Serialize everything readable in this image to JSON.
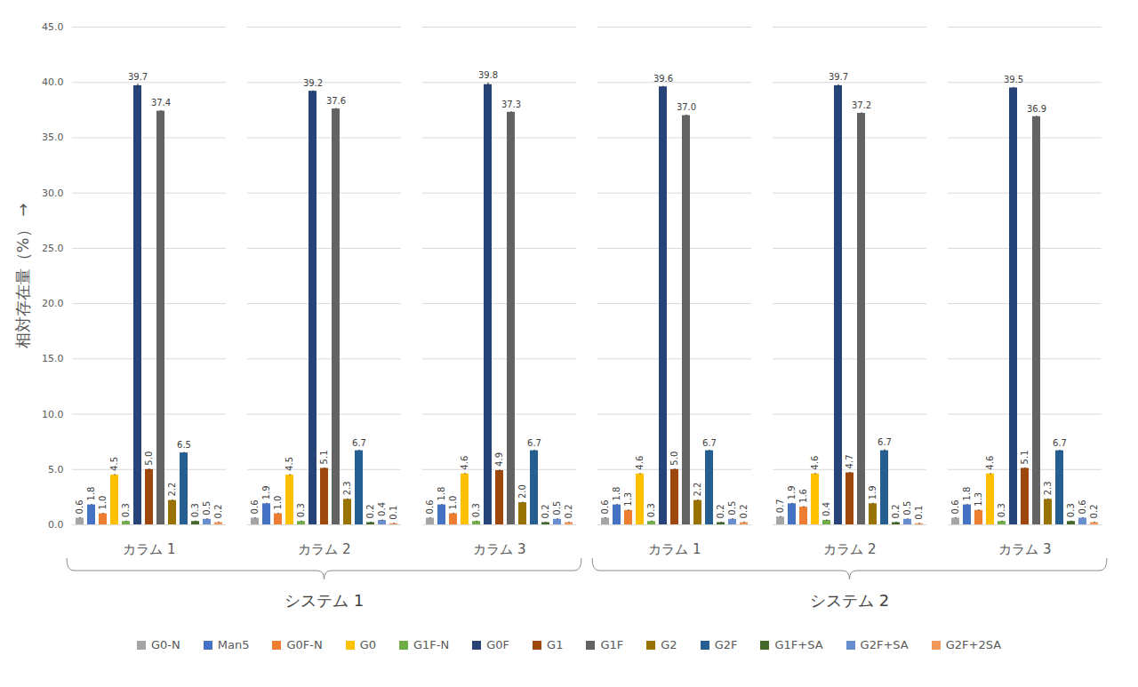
{
  "chart_data": {
    "type": "bar",
    "y_label": "相対存在量（%）",
    "categories": [
      "カラム 1",
      "カラム 2",
      "カラム 3",
      "カラム 1",
      "カラム 2",
      "カラム 3"
    ],
    "category_groups": [
      {
        "name": "システム 1",
        "size": 3
      },
      {
        "name": "システム 2",
        "size": 3
      }
    ],
    "ylim": [
      0,
      45
    ],
    "yticks": [
      {
        "value": 0,
        "label": "0.0"
      },
      {
        "value": 5,
        "label": "5.0"
      },
      {
        "value": 10,
        "label": "10.0"
      },
      {
        "value": 15,
        "label": "15.0"
      },
      {
        "value": 20,
        "label": "20.0"
      },
      {
        "value": 25,
        "label": "25.0"
      },
      {
        "value": 30,
        "label": "30.0"
      },
      {
        "value": 35,
        "label": "35.0"
      },
      {
        "value": 40,
        "label": "40.0"
      },
      {
        "value": 45,
        "label": "45.0"
      }
    ],
    "grid": true,
    "legend": "bottom",
    "data_labels": true,
    "series": [
      {
        "name": "G0-N",
        "color": "#a5a5a5",
        "values": [
          0.6,
          0.6,
          0.6,
          0.6,
          0.7,
          0.6
        ],
        "value_labels": [
          "0.6",
          "0.6",
          "0.6",
          "0.6",
          "0.7",
          "0.6"
        ],
        "errors": [
          0.05,
          0.05,
          0.05,
          0.05,
          0.05,
          0.05
        ]
      },
      {
        "name": "Man5",
        "color": "#4472c4",
        "values": [
          1.8,
          1.9,
          1.8,
          1.8,
          1.9,
          1.8
        ],
        "value_labels": [
          "1.8",
          "1.9",
          "1.8",
          "1.8",
          "1.9",
          "1.8"
        ],
        "errors": [
          0.05,
          0.05,
          0.05,
          0.05,
          0.05,
          0.05
        ]
      },
      {
        "name": "G0F-N",
        "color": "#ed7d31",
        "values": [
          1.0,
          1.0,
          1.0,
          1.3,
          1.6,
          1.3
        ],
        "value_labels": [
          "1.0",
          "1.0",
          "1.0",
          "1.3",
          "1.6",
          "1.3"
        ],
        "errors": [
          0.05,
          0.05,
          0.05,
          0.05,
          0.05,
          0.05
        ]
      },
      {
        "name": "G0",
        "color": "#ffc000",
        "values": [
          4.5,
          4.5,
          4.6,
          4.6,
          4.6,
          4.6
        ],
        "value_labels": [
          "4.5",
          "4.5",
          "4.6",
          "4.6",
          "4.6",
          "4.6"
        ],
        "errors": [
          0.05,
          0.05,
          0.05,
          0.05,
          0.05,
          0.05
        ]
      },
      {
        "name": "G1F-N",
        "color": "#70ad47",
        "values": [
          0.3,
          0.3,
          0.3,
          0.3,
          0.4,
          0.3
        ],
        "value_labels": [
          "0.3",
          "0.3",
          "0.3",
          "0.3",
          "0.4",
          "0.3"
        ],
        "errors": [
          0.05,
          0.05,
          0.05,
          0.05,
          0.05,
          0.05
        ]
      },
      {
        "name": "G0F",
        "color": "#264478",
        "values": [
          39.7,
          39.2,
          39.8,
          39.6,
          39.7,
          39.5
        ],
        "value_labels": [
          "39.7",
          "39.2",
          "39.8",
          "39.6",
          "39.7",
          "39.5"
        ],
        "errors": [
          0.15,
          0.05,
          0.15,
          0.05,
          0.1,
          0.05
        ]
      },
      {
        "name": "G1",
        "color": "#9e480e",
        "values": [
          5.0,
          5.1,
          4.9,
          5.0,
          4.7,
          5.1
        ],
        "value_labels": [
          "5.0",
          "5.1",
          "4.9",
          "5.0",
          "4.7",
          "5.1"
        ],
        "errors": [
          0.05,
          0.05,
          0.05,
          0.05,
          0.05,
          0.05
        ]
      },
      {
        "name": "G1F",
        "color": "#636363",
        "values": [
          37.4,
          37.6,
          37.3,
          37.0,
          37.2,
          36.9
        ],
        "value_labels": [
          "37.4",
          "37.6",
          "37.3",
          "37.0",
          "37.2",
          "36.9"
        ],
        "errors": [
          0.05,
          0.05,
          0.05,
          0.05,
          0.05,
          0.05
        ]
      },
      {
        "name": "G2",
        "color": "#997300",
        "values": [
          2.2,
          2.3,
          2.0,
          2.2,
          1.9,
          2.3
        ],
        "value_labels": [
          "2.2",
          "2.3",
          "2.0",
          "2.2",
          "1.9",
          "2.3"
        ],
        "errors": [
          0.05,
          0.05,
          0.05,
          0.05,
          0.05,
          0.05
        ]
      },
      {
        "name": "G2F",
        "color": "#255e91",
        "values": [
          6.5,
          6.7,
          6.7,
          6.7,
          6.7,
          6.7
        ],
        "value_labels": [
          "6.5",
          "6.7",
          "6.7",
          "6.7",
          "6.7",
          "6.7"
        ],
        "errors": [
          0.05,
          0.05,
          0.05,
          0.05,
          0.1,
          0.05
        ]
      },
      {
        "name": "G1F+SA",
        "color": "#43682b",
        "values": [
          0.3,
          0.2,
          0.2,
          0.2,
          0.2,
          0.3
        ],
        "value_labels": [
          "0.3",
          "0.2",
          "0.2",
          "0.2",
          "0.2",
          "0.3"
        ],
        "errors": [
          0.05,
          0.05,
          0.05,
          0.05,
          0.05,
          0.05
        ]
      },
      {
        "name": "G2F+SA",
        "color": "#698ed0",
        "values": [
          0.5,
          0.4,
          0.5,
          0.5,
          0.5,
          0.6
        ],
        "value_labels": [
          "0.5",
          "0.4",
          "0.5",
          "0.5",
          "0.5",
          "0.6"
        ],
        "errors": [
          0.05,
          0.05,
          0.05,
          0.05,
          0.05,
          0.05
        ]
      },
      {
        "name": "G2F+2SA",
        "color": "#f1975a",
        "values": [
          0.2,
          0.1,
          0.2,
          0.2,
          0.1,
          0.2
        ],
        "value_labels": [
          "0.2",
          "0.1",
          "0.2",
          "0.2",
          "0.1",
          "0.2"
        ],
        "errors": [
          0.05,
          0.05,
          0.05,
          0.05,
          0.05,
          0.05
        ]
      }
    ]
  }
}
